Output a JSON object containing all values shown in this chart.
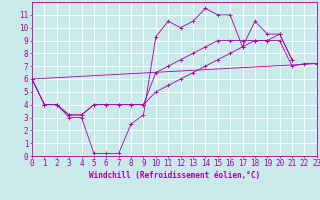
{
  "xlabel": "Windchill (Refroidissement éolien,°C)",
  "xlim": [
    0,
    23
  ],
  "ylim": [
    0,
    12
  ],
  "xticks": [
    0,
    1,
    2,
    3,
    4,
    5,
    6,
    7,
    8,
    9,
    10,
    11,
    12,
    13,
    14,
    15,
    16,
    17,
    18,
    19,
    20,
    21,
    22,
    23
  ],
  "yticks": [
    0,
    1,
    2,
    3,
    4,
    5,
    6,
    7,
    8,
    9,
    10,
    11
  ],
  "bg_color": "#c8eaea",
  "line_color": "#aa00aa",
  "grid_color": "#ffffff",
  "line1_x": [
    0,
    1,
    2,
    3,
    4,
    5,
    6,
    7,
    8,
    9,
    10,
    11,
    12,
    13,
    14,
    15,
    16,
    17,
    18,
    19,
    20,
    21
  ],
  "line1_y": [
    6,
    4,
    4,
    3,
    3,
    0.2,
    0.2,
    0.2,
    2.5,
    3.2,
    9.3,
    10.5,
    10.0,
    10.5,
    11.5,
    11.0,
    11.0,
    8.5,
    10.5,
    9.5,
    9.5,
    7.5
  ],
  "line2_x": [
    0,
    1,
    2,
    3,
    4,
    5,
    6,
    7,
    8,
    9,
    10,
    11,
    12,
    13,
    14,
    15,
    16,
    17,
    18,
    19,
    20,
    21
  ],
  "line2_y": [
    6,
    4,
    4,
    3.2,
    3.2,
    4,
    4,
    4,
    4,
    4,
    6.5,
    7.0,
    7.5,
    8.0,
    8.5,
    9.0,
    9.0,
    9.0,
    9.0,
    9.0,
    9.5,
    7.5
  ],
  "line3_x": [
    0,
    1,
    2,
    3,
    4,
    5,
    6,
    7,
    8,
    9,
    10,
    11,
    12,
    13,
    14,
    15,
    16,
    17,
    18,
    19,
    20,
    21,
    22,
    23
  ],
  "line3_y": [
    6,
    4,
    4,
    3.2,
    3.2,
    4,
    4,
    4,
    4,
    4,
    5.0,
    5.5,
    6.0,
    6.5,
    7.0,
    7.5,
    8.0,
    8.5,
    9.0,
    9.0,
    9.0,
    7.0,
    7.2,
    7.2
  ],
  "line4_x": [
    0,
    23
  ],
  "line4_y": [
    6,
    7.2
  ],
  "font_size": 5.5,
  "tick_font_size": 5.5,
  "xlabel_fontsize": 5.5
}
